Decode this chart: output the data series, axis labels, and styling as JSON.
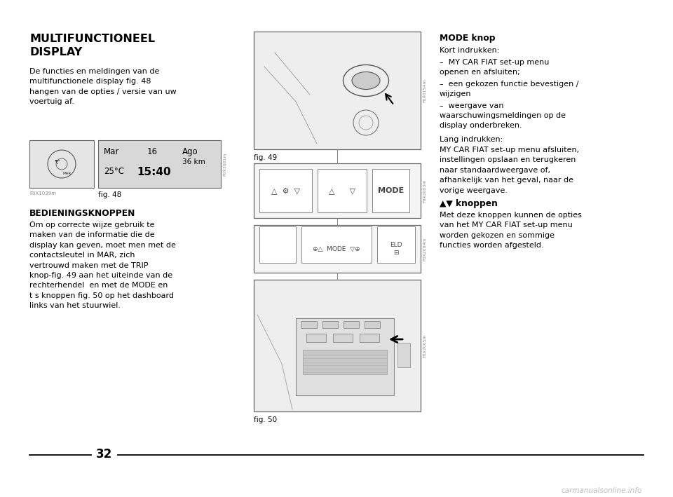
{
  "page_bg": "#ffffff",
  "page_number": "32",
  "section1_title_line1": "MULTIFUNCTIONEEL",
  "section1_title_line2": "DISPLAY",
  "section1_body": "De functies en meldingen van de\nmultifunctionele display fig. 48\nhangen van de opties / versie van uw\nvoertuig af.",
  "fig48_caption": "F0X1039m",
  "fig48_label": "fig. 48",
  "fig48_code": "F0X3001m",
  "section2_title": "BEDIENINGSKNOPPEN",
  "section2_body": "Om op correcte wijze gebruik te\nmaken van de informatie die de\ndisplay kan geven, moet men met de\ncontactsleutel in MAR, zich\nvertrouwd maken met de TRIP\nknop-fig. 49 aan het uiteinde van de\nrechterhendel  en met de MODE en\nt s knoppen fig. 50 op het dashboard\nlinks van het stuurwiel.",
  "fig49_label": "fig. 49",
  "fig49_code": "F0X0154m",
  "fig50_label": "fig. 50",
  "fig50_code": "F0X2005m",
  "fig_mid1_code": "F0X2003m",
  "fig_mid2_code": "F0X2004m",
  "right_mode_bold": "MODE knop",
  "right_kort": "Kort indrukken:",
  "right_bullets": [
    "MY CAR FIAT set-up menu\nopenen en afsluiten;",
    "een gekozen functie bevestigen /\nwijzigen",
    "weergave van\nwaarschuwingsmeldingen op de\ndisplay onderbreken."
  ],
  "right_lang_bold": "Lang indrukken:",
  "right_lang_body": "MY CAR FIAT set-up menu afsluiten,\ninstellingen opslaan en terugkeren\nnaar standaardweergave of,\nafhankelijk van het geval, naar de\nvorige weergave.",
  "right_av_bold": "▲▼ knoppen",
  "right_av_body": "Met deze knoppen kunnen de opties\nvan het MY CAR FIAT set-up menu\nworden gekozen en sommige\nfuncties worden afgesteld.",
  "watermark": "carmanualsonline.info",
  "text_color": "#000000",
  "gray_text": "#888888",
  "box_edge": "#666666",
  "box_fill": "#f2f2f2",
  "display_fill": "#d8d8d8",
  "watermark_color": "#bbbbbb"
}
